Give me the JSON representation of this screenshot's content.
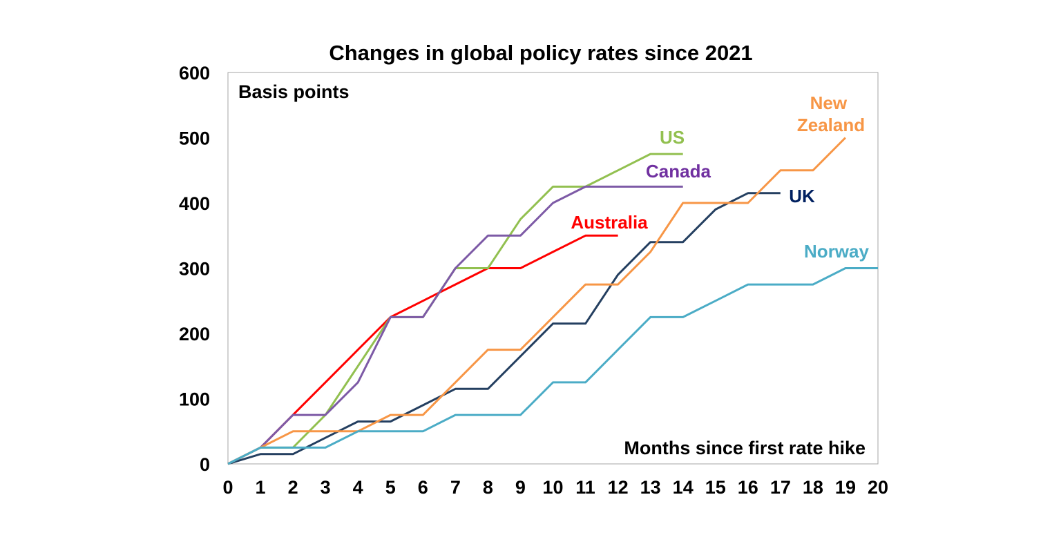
{
  "chart_data": {
    "type": "line",
    "title": "Changes in global policy rates since 2021",
    "ylabel": "Basis points",
    "xlabel": "Months since first rate hike",
    "xlim": [
      0,
      20
    ],
    "ylim": [
      0,
      600
    ],
    "x_ticks": [
      "0",
      "1",
      "2",
      "3",
      "4",
      "5",
      "6",
      "7",
      "8",
      "9",
      "10",
      "11",
      "12",
      "13",
      "14",
      "15",
      "16",
      "17",
      "18",
      "19",
      "20"
    ],
    "y_ticks": [
      "0",
      "100",
      "200",
      "300",
      "400",
      "500",
      "600"
    ],
    "grid": false,
    "series": [
      {
        "name": "Australia",
        "label": "Australia",
        "color": "#ff0000",
        "x": [
          0,
          1,
          2,
          3,
          4,
          5,
          6,
          7,
          8,
          9,
          10,
          11,
          12
        ],
        "values": [
          0,
          25,
          75,
          125,
          175,
          225,
          250,
          275,
          300,
          300,
          325,
          350,
          350
        ]
      },
      {
        "name": "US",
        "label": "US",
        "color": "#92c050",
        "x": [
          0,
          1,
          2,
          3,
          4,
          5,
          6,
          7,
          8,
          9,
          10,
          11,
          12,
          13,
          14
        ],
        "values": [
          0,
          25,
          25,
          75,
          150,
          225,
          225,
          300,
          300,
          375,
          425,
          425,
          450,
          475,
          475
        ]
      },
      {
        "name": "Canada",
        "label": "Canada",
        "color": "#7d5aa6",
        "x": [
          0,
          1,
          2,
          3,
          4,
          5,
          6,
          7,
          8,
          9,
          10,
          11,
          12,
          13,
          14
        ],
        "values": [
          0,
          25,
          75,
          75,
          125,
          225,
          225,
          300,
          350,
          350,
          400,
          425,
          425,
          425,
          425
        ]
      },
      {
        "name": "UK",
        "label": "UK",
        "color": "#243f60",
        "x": [
          0,
          1,
          2,
          3,
          4,
          5,
          6,
          7,
          8,
          9,
          10,
          11,
          12,
          13,
          14,
          15,
          16,
          17
        ],
        "values": [
          0,
          15,
          15,
          40,
          65,
          65,
          90,
          115,
          115,
          165,
          215,
          215,
          290,
          340,
          340,
          390,
          415,
          415
        ]
      },
      {
        "name": "New Zealand",
        "label": "New Zealand",
        "color": "#f79646",
        "x": [
          0,
          1,
          2,
          3,
          4,
          5,
          6,
          7,
          8,
          9,
          10,
          11,
          12,
          13,
          14,
          15,
          16,
          17,
          18,
          19
        ],
        "values": [
          0,
          25,
          50,
          50,
          50,
          75,
          75,
          125,
          175,
          175,
          225,
          275,
          275,
          325,
          400,
          400,
          400,
          450,
          450,
          500
        ]
      },
      {
        "name": "Norway",
        "label": "Norway",
        "color": "#4bacc6",
        "x": [
          0,
          1,
          2,
          3,
          4,
          5,
          6,
          7,
          8,
          9,
          10,
          11,
          12,
          13,
          14,
          15,
          16,
          17,
          18,
          19,
          20
        ],
        "values": [
          0,
          25,
          25,
          25,
          50,
          50,
          50,
          75,
          75,
          75,
          125,
          125,
          175,
          225,
          225,
          250,
          275,
          275,
          275,
          300,
          300
        ]
      }
    ]
  }
}
